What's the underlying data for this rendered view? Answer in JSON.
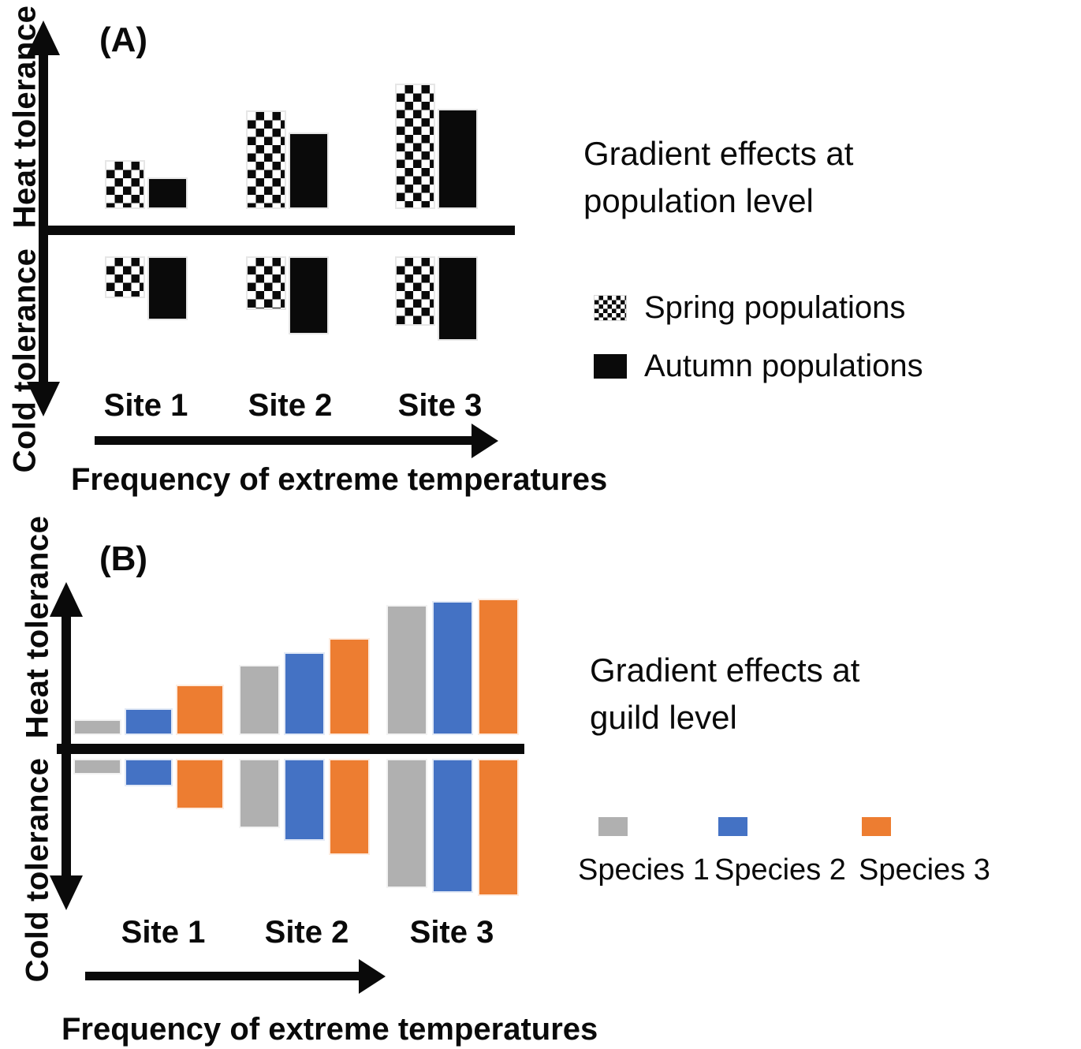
{
  "colors": {
    "black": "#0a0a0a",
    "gray": "#b0b0b0",
    "blue": "#4472c4",
    "orange": "#ed7d31"
  },
  "panel_a": {
    "label": "(A)",
    "title_lines": [
      "Gradient effects at",
      "population level"
    ]
  },
  "panel_b": {
    "label": "(B)",
    "title_lines": [
      "Gradient effects at",
      "guild level"
    ]
  },
  "chart_data": [
    {
      "panel": "A",
      "type": "bar",
      "title": "Gradient effects at population level",
      "categories": [
        "Site 1",
        "Site 2",
        "Site 3"
      ],
      "xlabel": "Frequency of extreme temperatures",
      "y_positive_label": "Heat tolerance",
      "y_negative_label": "Cold tolerance",
      "units": "relative bar lengths (qualitative figure, no numeric axis)",
      "legend_position": "right",
      "series": [
        {
          "name": "Spring populations",
          "style": "checkered",
          "heat_tolerance": [
            62,
            125,
            159
          ],
          "cold_tolerance": [
            53,
            68,
            88
          ]
        },
        {
          "name": "Autumn populations",
          "style": "solid-black",
          "heat_tolerance": [
            40,
            97,
            127
          ],
          "cold_tolerance": [
            81,
            99,
            107
          ]
        }
      ]
    },
    {
      "panel": "B",
      "type": "bar",
      "title": "Gradient effects at guild level",
      "categories": [
        "Site 1",
        "Site 2",
        "Site 3"
      ],
      "xlabel": "Frequency of extreme temperatures",
      "y_positive_label": "Heat tolerance",
      "y_negative_label": "Cold tolerance",
      "units": "relative bar lengths (qualitative figure, no numeric axis)",
      "legend_position": "right",
      "series": [
        {
          "name": "Species 1",
          "color": "#b0b0b0",
          "heat_tolerance": [
            20,
            89,
            165
          ],
          "cold_tolerance": [
            20,
            88,
            164
          ]
        },
        {
          "name": "Species 2",
          "color": "#4472c4",
          "heat_tolerance": [
            34,
            105,
            170
          ],
          "cold_tolerance": [
            35,
            104,
            170
          ]
        },
        {
          "name": "Species 3",
          "color": "#ed7d31",
          "heat_tolerance": [
            64,
            123,
            173
          ],
          "cold_tolerance": [
            64,
            122,
            174
          ]
        }
      ]
    }
  ]
}
